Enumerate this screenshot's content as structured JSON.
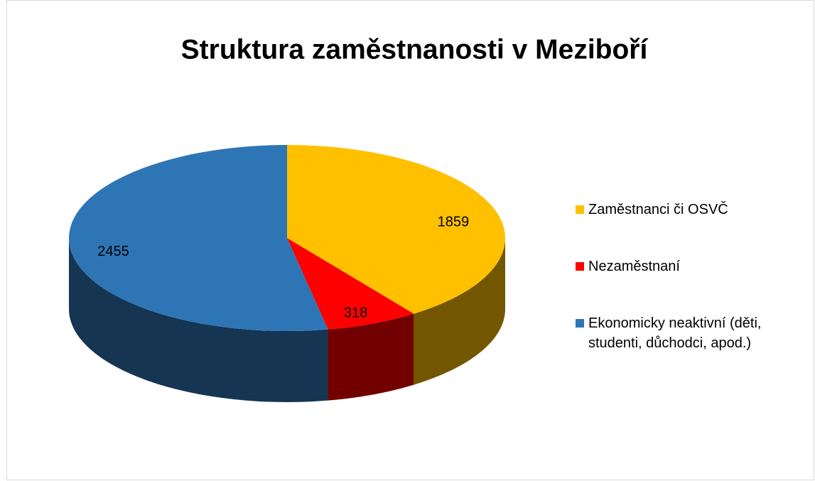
{
  "chart_data": {
    "type": "pie3d",
    "title": "Struktura zaměstnanosti v Meziboří",
    "categories": [
      "Zaměstnanci či OSVČ",
      "Nezaměstnaní",
      "Ekonomicky neaktivní (děti, studenti, důchodci, apod.)"
    ],
    "values": [
      1859,
      318,
      2455
    ],
    "colors": [
      "#FFC000",
      "#FF0000",
      "#2E75B6"
    ],
    "legend": "right"
  }
}
